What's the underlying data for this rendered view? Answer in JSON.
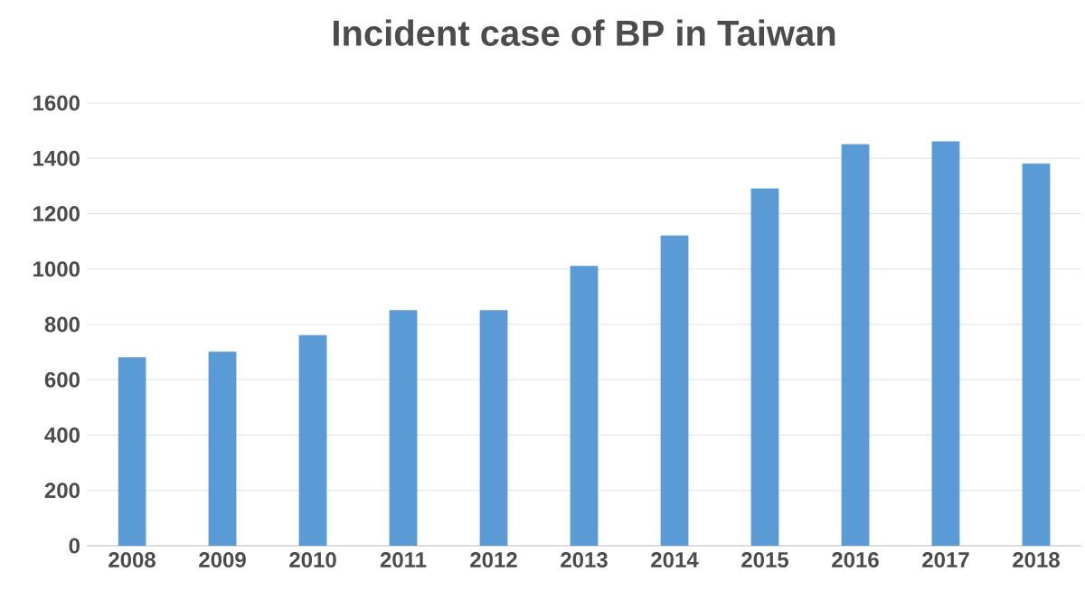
{
  "chart_data": {
    "type": "bar",
    "title": "Incident case of BP in Taiwan",
    "categories": [
      "2008",
      "2009",
      "2010",
      "2011",
      "2012",
      "2013",
      "2014",
      "2015",
      "2016",
      "2017",
      "2018"
    ],
    "values": [
      680,
      700,
      760,
      850,
      850,
      1010,
      1120,
      1290,
      1450,
      1460,
      1380
    ],
    "color": "#5b9bd5",
    "ylim": [
      0,
      1600
    ],
    "yticks": [
      0,
      200,
      400,
      600,
      800,
      1000,
      1200,
      1400,
      1600
    ],
    "grid": "y"
  }
}
